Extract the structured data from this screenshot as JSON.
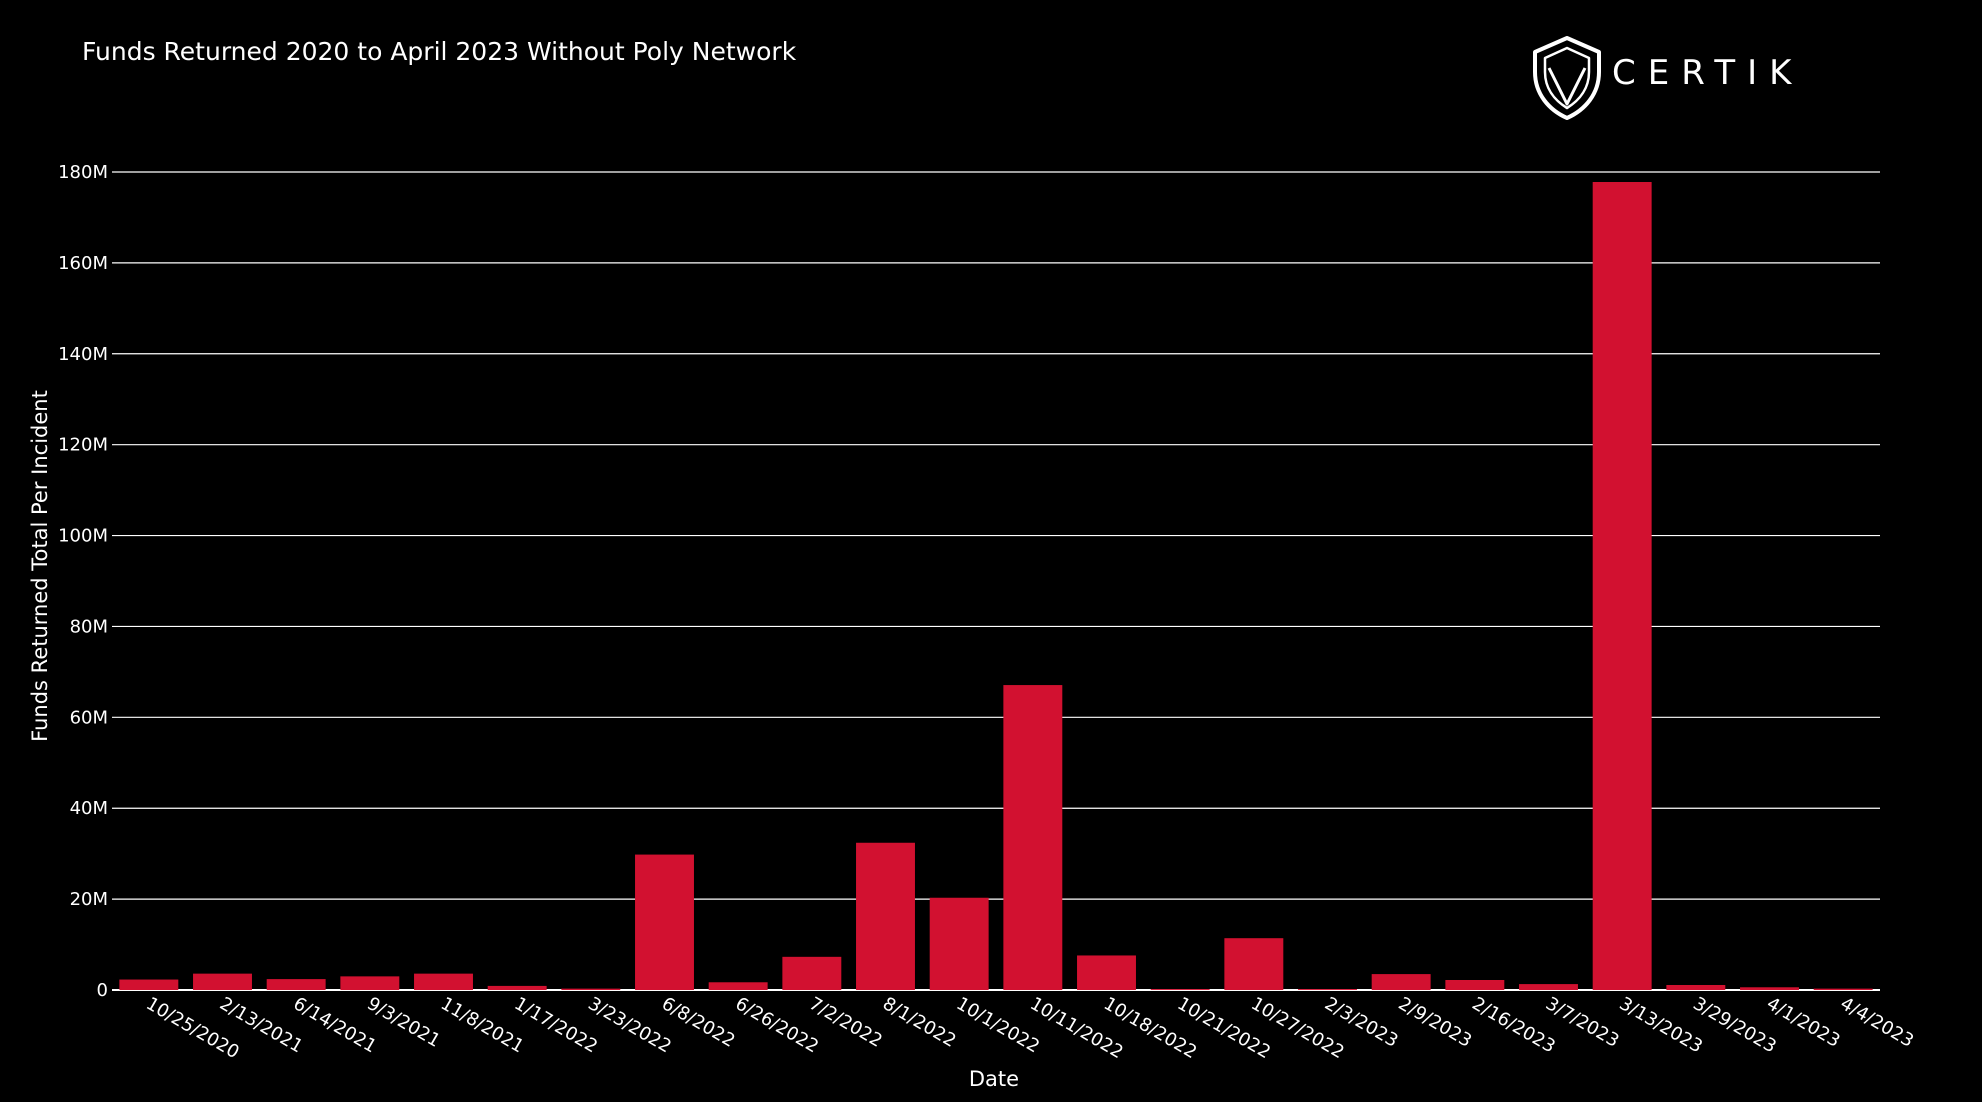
{
  "chart_data": {
    "type": "bar",
    "title": "Funds Returned 2020 to April 2023 Without Poly Network",
    "xlabel": "Date",
    "ylabel": "Funds Returned Total Per Incident",
    "categories": [
      "10/25/2020",
      "2/13/2021",
      "6/14/2021",
      "9/3/2021",
      "11/8/2021",
      "1/17/2022",
      "3/23/2022",
      "6/8/2022",
      "6/26/2022",
      "7/2/2022",
      "8/1/2022",
      "10/1/2022",
      "10/11/2022",
      "10/18/2022",
      "10/21/2022",
      "10/27/2022",
      "2/3/2023",
      "2/9/2023",
      "2/16/2023",
      "3/7/2023",
      "3/13/2023",
      "3/29/2023",
      "4/1/2023",
      "4/4/2023"
    ],
    "values": [
      2300000,
      3600000,
      2400000,
      3000000,
      3600000,
      900000,
      300000,
      29800000,
      1700000,
      7300000,
      32400000,
      20300000,
      67100000,
      7600000,
      200000,
      11400000,
      200000,
      3500000,
      2200000,
      1300000,
      177800000,
      1100000,
      600000,
      300000
    ],
    "ylim": [
      0,
      180000000
    ],
    "yticks": [
      0,
      20000000,
      40000000,
      60000000,
      80000000,
      100000000,
      120000000,
      140000000,
      160000000,
      180000000
    ],
    "ytick_labels": [
      "0",
      "20M",
      "40M",
      "60M",
      "80M",
      "100M",
      "120M",
      "140M",
      "160M",
      "180M"
    ],
    "grid": true,
    "legend": "none",
    "bar_color": "#d21130",
    "background_color": "#000000",
    "grid_color": "#ffffff"
  },
  "logo": {
    "text": "CERTIK",
    "icon": "certik-shield-icon"
  }
}
